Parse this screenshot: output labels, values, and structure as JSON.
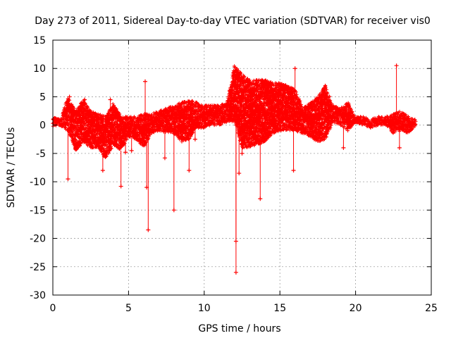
{
  "chart_data": {
    "type": "scatter",
    "title": "Day 273 of 2011, Sidereal Day-to-day VTEC variation (SDTVAR) for receiver vis0",
    "xlabel": "GPS time / hours",
    "ylabel": "SDTVAR / TECUs",
    "xlim": [
      0,
      25
    ],
    "ylim": [
      -30,
      15
    ],
    "xticks": [
      0,
      5,
      10,
      15,
      20,
      25
    ],
    "yticks": [
      -30,
      -25,
      -20,
      -15,
      -10,
      -5,
      0,
      5,
      10,
      15
    ],
    "grid": true,
    "colors": {
      "series": "#ff0000",
      "grid": "#a0a0a0",
      "frame": "#000000"
    },
    "series": [
      {
        "name": "SDTVAR",
        "marker": "+",
        "band": [
          [
            0.0,
            -0.2,
            1.5
          ],
          [
            0.5,
            -0.1,
            1.0
          ],
          [
            1.0,
            -1.0,
            5.0
          ],
          [
            1.5,
            -4.5,
            2.5
          ],
          [
            2.0,
            -3.0,
            4.5
          ],
          [
            2.5,
            -4.0,
            2.5
          ],
          [
            3.0,
            -4.0,
            2.0
          ],
          [
            3.5,
            -6.0,
            1.5
          ],
          [
            4.0,
            -3.5,
            4.0
          ],
          [
            4.5,
            -4.5,
            1.5
          ],
          [
            5.0,
            -2.0,
            1.5
          ],
          [
            5.5,
            -2.5,
            1.5
          ],
          [
            6.0,
            -4.0,
            2.0
          ],
          [
            6.5,
            -1.5,
            2.0
          ],
          [
            7.0,
            -1.0,
            2.5
          ],
          [
            7.5,
            -1.5,
            3.0
          ],
          [
            8.0,
            -1.5,
            3.5
          ],
          [
            8.5,
            -3.0,
            4.0
          ],
          [
            9.0,
            -2.5,
            4.5
          ],
          [
            9.5,
            -0.5,
            4.0
          ],
          [
            10.0,
            -0.5,
            3.5
          ],
          [
            10.5,
            0.0,
            3.5
          ],
          [
            11.0,
            0.0,
            3.5
          ],
          [
            11.5,
            0.5,
            4.0
          ],
          [
            12.0,
            0.5,
            10.5
          ],
          [
            12.5,
            -4.0,
            9.0
          ],
          [
            13.0,
            -4.0,
            8.0
          ],
          [
            13.5,
            -3.5,
            8.0
          ],
          [
            14.0,
            -3.0,
            8.0
          ],
          [
            14.5,
            -1.5,
            7.5
          ],
          [
            15.0,
            -1.0,
            7.5
          ],
          [
            15.5,
            -1.0,
            7.0
          ],
          [
            16.0,
            -1.0,
            6.5
          ],
          [
            16.5,
            -1.5,
            3.0
          ],
          [
            17.0,
            -2.0,
            4.0
          ],
          [
            17.5,
            -3.0,
            5.0
          ],
          [
            18.0,
            -2.5,
            7.0
          ],
          [
            18.5,
            0.5,
            3.5
          ],
          [
            19.0,
            0.0,
            3.0
          ],
          [
            19.5,
            -1.0,
            4.0
          ],
          [
            20.0,
            0.5,
            1.5
          ],
          [
            20.5,
            0.0,
            1.5
          ],
          [
            21.0,
            -0.5,
            1.0
          ],
          [
            21.5,
            0.0,
            1.5
          ],
          [
            22.0,
            0.0,
            1.5
          ],
          [
            22.5,
            -1.5,
            2.0
          ],
          [
            23.0,
            -1.0,
            2.5
          ],
          [
            23.5,
            -1.5,
            1.5
          ],
          [
            24.0,
            0.0,
            1.0
          ]
        ],
        "spikes": [
          [
            1.0,
            -9.5
          ],
          [
            1.1,
            5.0
          ],
          [
            2.1,
            4.5
          ],
          [
            3.3,
            -8.0
          ],
          [
            3.8,
            4.5
          ],
          [
            4.5,
            -10.8
          ],
          [
            4.8,
            -4.8
          ],
          [
            5.2,
            -4.5
          ],
          [
            6.3,
            -18.5
          ],
          [
            6.1,
            7.7
          ],
          [
            6.2,
            -11.0
          ],
          [
            7.4,
            -5.8
          ],
          [
            8.0,
            -15.0
          ],
          [
            9.0,
            -8.0
          ],
          [
            9.4,
            -2.5
          ],
          [
            12.1,
            -26.0
          ],
          [
            12.1,
            -20.5
          ],
          [
            12.3,
            -8.5
          ],
          [
            12.5,
            -5.0
          ],
          [
            13.7,
            -13.0
          ],
          [
            15.9,
            -8.0
          ],
          [
            16.0,
            10.0
          ],
          [
            19.2,
            -4.0
          ],
          [
            22.7,
            10.5
          ],
          [
            22.9,
            -4.0
          ]
        ]
      }
    ]
  }
}
